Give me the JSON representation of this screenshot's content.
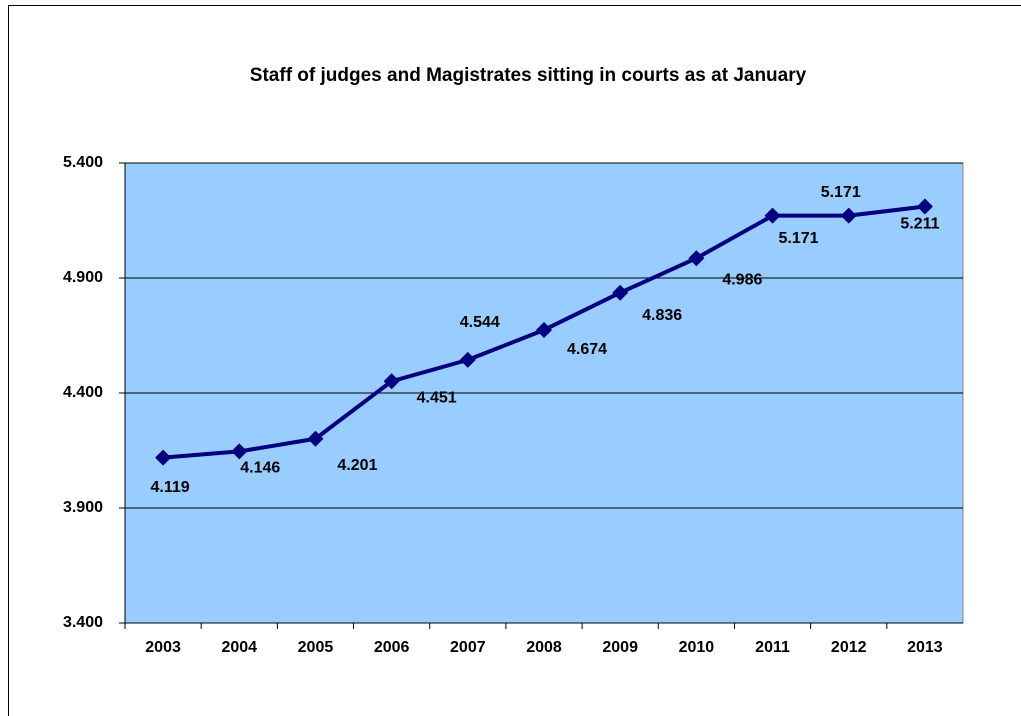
{
  "chart_data": {
    "type": "line",
    "title": "Staff of judges and Magistrates sitting in courts as at January",
    "categories": [
      "2003",
      "2004",
      "2005",
      "2006",
      "2007",
      "2008",
      "2009",
      "2010",
      "2011",
      "2012",
      "2013"
    ],
    "series": [
      {
        "color": "#000080",
        "values": [
          4119,
          4146,
          4201,
          4451,
          4544,
          4674,
          4836,
          4986,
          5171,
          5171,
          5211
        ],
        "value_labels": [
          "4.119",
          "4.146",
          "4.201",
          "4.451",
          "4.544",
          "4.674",
          "4.836",
          "4.986",
          "5.171",
          "5.171",
          "5.211"
        ]
      }
    ],
    "ylim": [
      3400,
      5400
    ],
    "yticks": [
      {
        "value": 3400,
        "label": "3.400"
      },
      {
        "value": 3900,
        "label": "3.900"
      },
      {
        "value": 4400,
        "label": "4.400"
      },
      {
        "value": 4900,
        "label": "4.900"
      },
      {
        "value": 5400,
        "label": "5.400"
      }
    ],
    "grid": true,
    "plot_background": "#99ccff"
  }
}
